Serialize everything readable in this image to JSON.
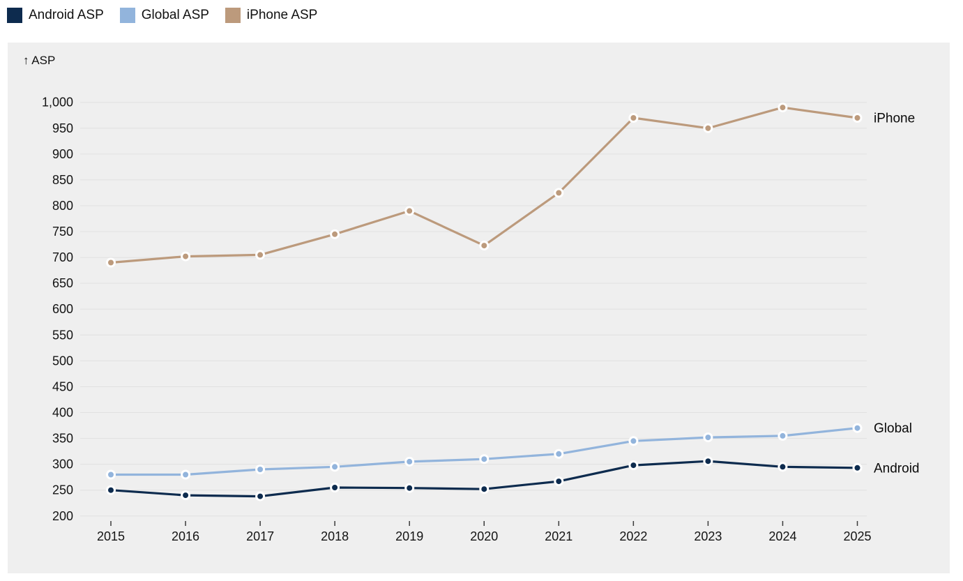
{
  "y_axis_title": "↑ ASP",
  "colors": {
    "panel_background": "#efefef",
    "gridline": "#e0e0e0",
    "tick_text": "#141414",
    "axis_tick_mark": "#3a3a3a",
    "end_label_text": "#0a0a0a",
    "marker_ring": "#ffffff"
  },
  "chart_data": {
    "type": "line",
    "title": "",
    "xlabel": "",
    "ylabel": "ASP",
    "x": [
      2015,
      2016,
      2017,
      2018,
      2019,
      2020,
      2021,
      2022,
      2023,
      2024,
      2025
    ],
    "x_tick_labels": [
      "2015",
      "2016",
      "2017",
      "2018",
      "2019",
      "2020",
      "2021",
      "2022",
      "2023",
      "2024",
      "2025"
    ],
    "ylim": [
      200,
      1000
    ],
    "ytick_step": 50,
    "y_tick_labels": [
      "200",
      "250",
      "300",
      "350",
      "400",
      "450",
      "500",
      "550",
      "600",
      "650",
      "700",
      "750",
      "800",
      "850",
      "900",
      "950",
      "1,000"
    ],
    "grid": true,
    "legend_position": "top",
    "series": [
      {
        "name": "Android ASP",
        "end_label": "Android",
        "color": "#0d2b4e",
        "values": [
          250,
          240,
          238,
          255,
          254,
          252,
          267,
          298,
          306,
          295,
          293
        ]
      },
      {
        "name": "Global ASP",
        "end_label": "Global",
        "color": "#92b4dc",
        "values": [
          280,
          280,
          290,
          295,
          305,
          310,
          320,
          345,
          352,
          355,
          370
        ]
      },
      {
        "name": "iPhone ASP",
        "end_label": "iPhone",
        "color": "#bc9a7c",
        "values": [
          690,
          702,
          705,
          745,
          790,
          723,
          825,
          970,
          950,
          990,
          970
        ]
      }
    ]
  }
}
